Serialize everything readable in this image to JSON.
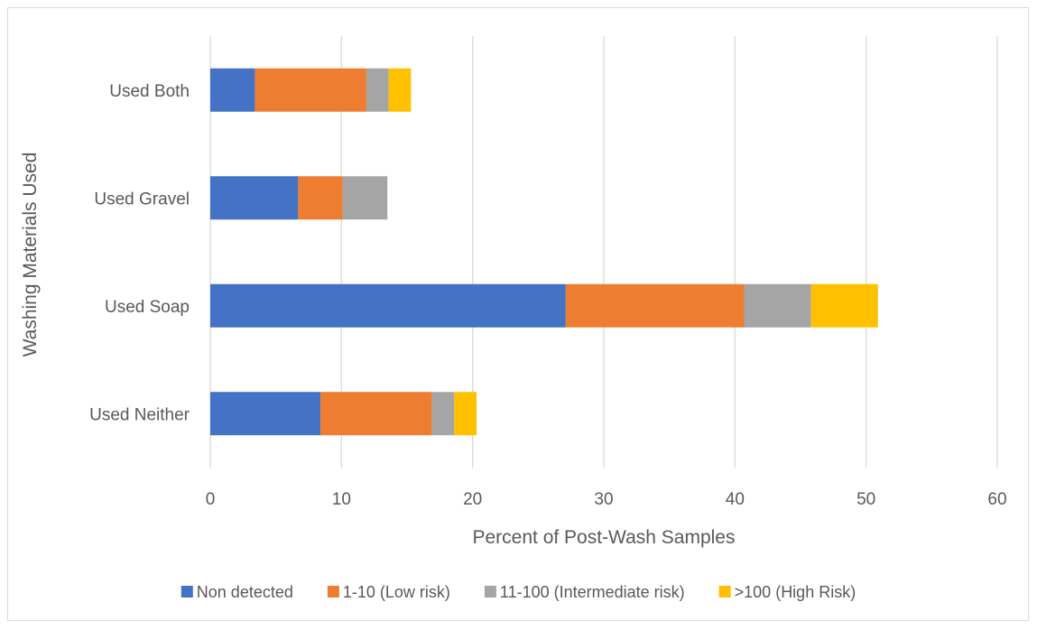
{
  "chart_data": {
    "type": "bar",
    "orientation": "horizontal",
    "stacked": true,
    "categories": [
      "Used Neither",
      "Used Soap",
      "Used Gravel",
      "Used Both"
    ],
    "series": [
      {
        "name": "Non detected",
        "color": "#4472C4",
        "values": [
          8.4,
          27.1,
          6.7,
          3.4
        ]
      },
      {
        "name": "1-10 (Low risk)",
        "color": "#ED7D31",
        "values": [
          8.5,
          13.6,
          3.4,
          8.5
        ]
      },
      {
        "name": "11-100 (Intermediate risk)",
        "color": "#A5A5A5",
        "values": [
          1.7,
          5.1,
          3.4,
          1.7
        ]
      },
      {
        "name": ">100 (High Risk)",
        "color": "#FFC000",
        "values": [
          1.7,
          5.1,
          0,
          1.7
        ]
      }
    ],
    "xlabel": "Percent of Post-Wash Samples",
    "ylabel": "Washing Materials Used",
    "xlim": [
      0,
      60
    ],
    "xticks": [
      0,
      10,
      20,
      30,
      40,
      50,
      60
    ],
    "grid": "vertical",
    "legend_position": "bottom"
  }
}
